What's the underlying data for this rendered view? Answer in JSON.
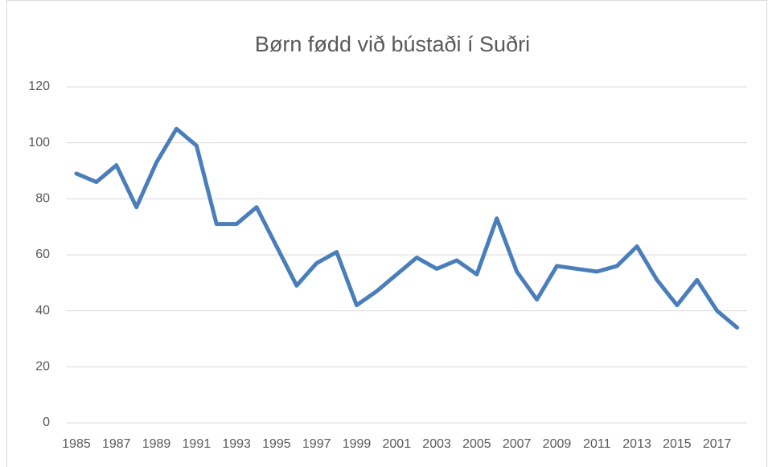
{
  "chart_data": {
    "type": "line",
    "title": "Børn fødd við bústaði í Suðri",
    "categories": [
      1985,
      null,
      1987,
      null,
      1989,
      null,
      1991,
      null,
      1993,
      null,
      1995,
      null,
      1997,
      null,
      1999,
      null,
      2001,
      null,
      2003,
      null,
      2005,
      null,
      2007,
      null,
      2009,
      null,
      2011,
      null,
      2013,
      null,
      2015,
      null,
      2017,
      null
    ],
    "series": [
      {
        "name": "Børn fødd",
        "color": "#4a7ebb",
        "values": [
          89,
          86,
          92,
          77,
          93,
          105,
          99,
          71,
          71,
          77,
          63,
          49,
          57,
          61,
          42,
          47,
          53,
          59,
          55,
          58,
          53,
          73,
          54,
          44,
          56,
          55,
          54,
          56,
          63,
          51,
          42,
          51,
          40,
          34
        ]
      }
    ],
    "ylim": [
      0,
      120
    ],
    "yticks": [
      0,
      20,
      40,
      60,
      80,
      100,
      120
    ],
    "grid": true
  }
}
